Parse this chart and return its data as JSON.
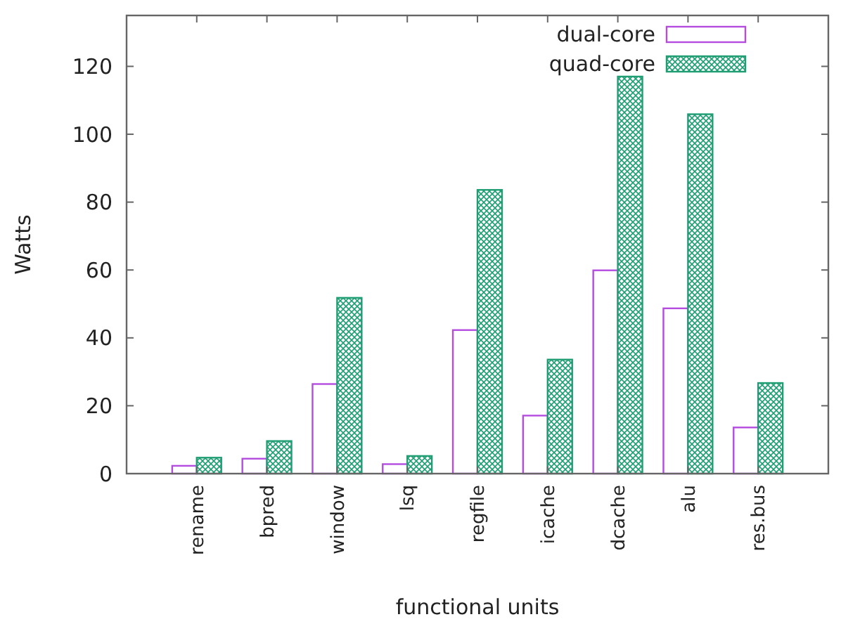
{
  "chart_data": {
    "type": "bar",
    "xlabel": "functional units",
    "ylabel": "Watts",
    "categories": [
      "rename",
      "bpred",
      "window",
      "lsq",
      "regfile",
      "icache",
      "dcache",
      "alu",
      "res.bus"
    ],
    "series": [
      {
        "name": "dual-core",
        "color": "#b44ce0",
        "values": [
          2.3,
          4.4,
          26.4,
          2.8,
          42.3,
          17.1,
          59.9,
          48.7,
          13.6
        ]
      },
      {
        "name": "quad-core",
        "color": "#1f9e74",
        "values": [
          4.7,
          9.6,
          51.8,
          5.2,
          83.6,
          33.6,
          117,
          105.9,
          26.7
        ]
      }
    ],
    "ylim": [
      0,
      135
    ],
    "yticks": [
      0,
      20,
      40,
      60,
      80,
      100,
      120
    ],
    "grid": false,
    "legend": "top right"
  }
}
